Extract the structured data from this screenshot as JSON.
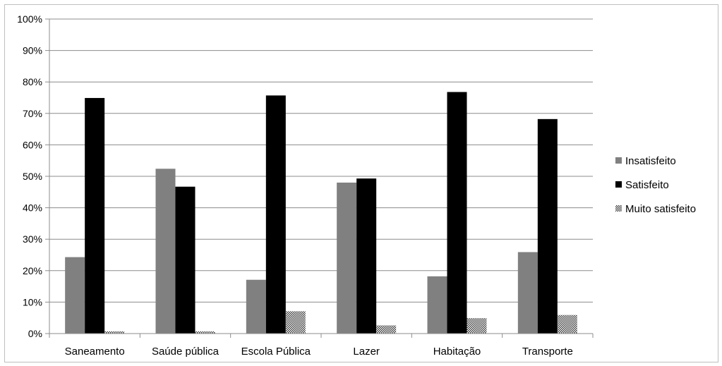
{
  "chart_data": {
    "type": "bar",
    "title": "",
    "xlabel": "",
    "ylabel": "",
    "ylim": [
      0,
      100
    ],
    "yticks": [
      "0%",
      "10%",
      "20%",
      "30%",
      "40%",
      "50%",
      "60%",
      "70%",
      "80%",
      "90%",
      "100%"
    ],
    "categories": [
      "Saneamento",
      "Saúde pública",
      "Escola Pública",
      "Lazer",
      "Habitação",
      "Transporte"
    ],
    "series": [
      {
        "name": "Insatisfeito",
        "color": "#808080",
        "pattern": "solid",
        "values": [
          24.3,
          52.4,
          17.1,
          48.0,
          18.2,
          25.9
        ]
      },
      {
        "name": "Satisfeito",
        "color": "#000000",
        "pattern": "solid",
        "values": [
          74.9,
          46.7,
          75.7,
          49.3,
          76.8,
          68.2
        ]
      },
      {
        "name": "Muito satisfeito",
        "color": "#3a3a3a",
        "pattern": "checker",
        "values": [
          0.7,
          0.7,
          7.1,
          2.6,
          4.9,
          5.9
        ]
      }
    ],
    "grid": true,
    "legend_position": "right"
  }
}
